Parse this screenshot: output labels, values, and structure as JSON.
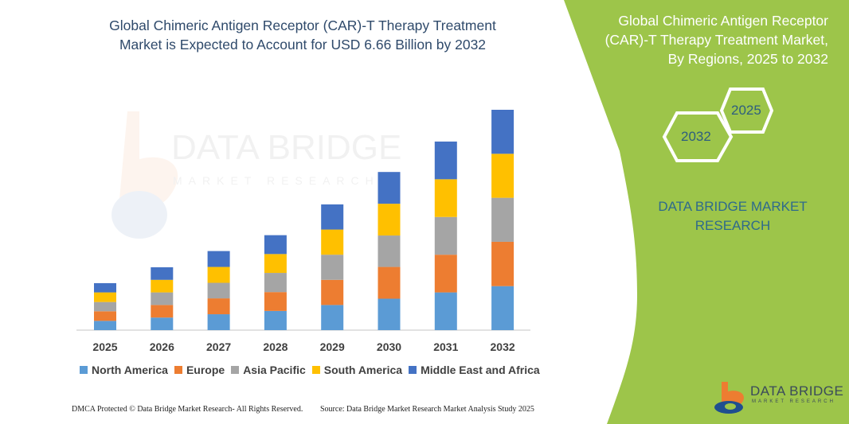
{
  "title": "Global Chimeric Antigen Receptor (CAR)-T Therapy Treatment Market is Expected to Account for USD 6.66 Billion by 2032",
  "side_panel": {
    "title": "Global Chimeric Antigen Receptor (CAR)-T Therapy Treatment Market, By Regions, 2025 to 2032",
    "hex_start": "2025",
    "hex_end": "2032",
    "brand": "DATA BRIDGE MARKET RESEARCH",
    "logo_text": "DATA BRIDGE",
    "logo_sub": "MARKET RESEARCH",
    "color": "#9dc54a"
  },
  "footer": {
    "left": "DMCA Protected © Data Bridge Market Research- All Rights Reserved.",
    "right": "Source: Data Bridge Market Research Market Analysis Study 2025"
  },
  "chart_data": {
    "type": "bar",
    "stacked": true,
    "title": "Global Chimeric Antigen Receptor (CAR)-T Therapy Treatment Market is Expected to Account for USD 6.66 Billion by 2032",
    "xlabel": "",
    "ylabel": "",
    "y_axis_shown": false,
    "grid": false,
    "legend_position": "bottom",
    "categories": [
      "2025",
      "2026",
      "2027",
      "2028",
      "2029",
      "2030",
      "2031",
      "2032"
    ],
    "series": [
      {
        "name": "North America",
        "color": "#5b9bd5",
        "values": [
          0.28,
          0.38,
          0.48,
          0.58,
          0.76,
          0.95,
          1.14,
          1.33
        ]
      },
      {
        "name": "Europe",
        "color": "#ed7d31",
        "values": [
          0.29,
          0.38,
          0.48,
          0.57,
          0.76,
          0.96,
          1.14,
          1.34
        ]
      },
      {
        "name": "Asia Pacific",
        "color": "#a5a5a5",
        "values": [
          0.28,
          0.38,
          0.47,
          0.58,
          0.76,
          0.95,
          1.14,
          1.33
        ]
      },
      {
        "name": "South America",
        "color": "#ffc000",
        "values": [
          0.29,
          0.38,
          0.48,
          0.57,
          0.76,
          0.96,
          1.14,
          1.33
        ]
      },
      {
        "name": "Middle East and Africa",
        "color": "#4472c4",
        "values": [
          0.28,
          0.38,
          0.48,
          0.57,
          0.76,
          0.96,
          1.14,
          1.33
        ]
      }
    ]
  }
}
